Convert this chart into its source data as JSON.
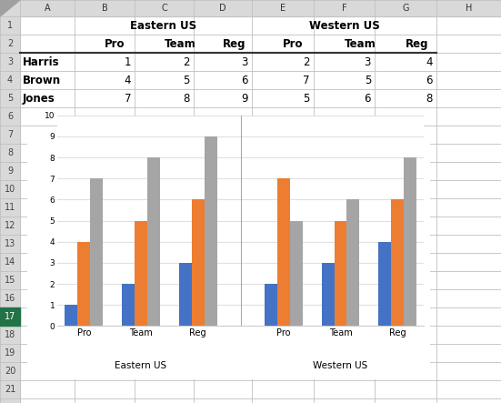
{
  "harris": [
    1,
    2,
    3,
    2,
    3,
    4
  ],
  "brown": [
    4,
    5,
    6,
    7,
    5,
    6
  ],
  "jones": [
    7,
    8,
    9,
    5,
    6,
    8
  ],
  "harris_color": "#4472c4",
  "brown_color": "#ed7d31",
  "jones_color": "#a5a5a5",
  "ylim": [
    0,
    10
  ],
  "yticks": [
    0,
    1,
    2,
    3,
    4,
    5,
    6,
    7,
    8,
    9,
    10
  ],
  "eastern_label": "Eastern US",
  "western_label": "Western US",
  "legend_labels": [
    "Harris",
    "Brown",
    "Jones"
  ],
  "col_letters": [
    "",
    "A",
    "B",
    "C",
    "D",
    "E",
    "F",
    "G",
    "H"
  ],
  "row_numbers": [
    "1",
    "2",
    "3",
    "4",
    "5",
    "6",
    "7",
    "8",
    "9",
    "10",
    "11",
    "12",
    "13",
    "14",
    "15",
    "16",
    "17",
    "18",
    "19",
    "20",
    "21"
  ],
  "sub_labels": [
    "Pro",
    "Team",
    "Reg",
    "Pro",
    "Team",
    "Reg"
  ],
  "bg_color": "#f0f0f0",
  "cell_bg": "#ffffff",
  "header_bg": "#d9d9d9",
  "grid_line_color": "#c0c0c0",
  "chart_border": "#bfbfbf",
  "chart_grid": "#e0e0e0"
}
